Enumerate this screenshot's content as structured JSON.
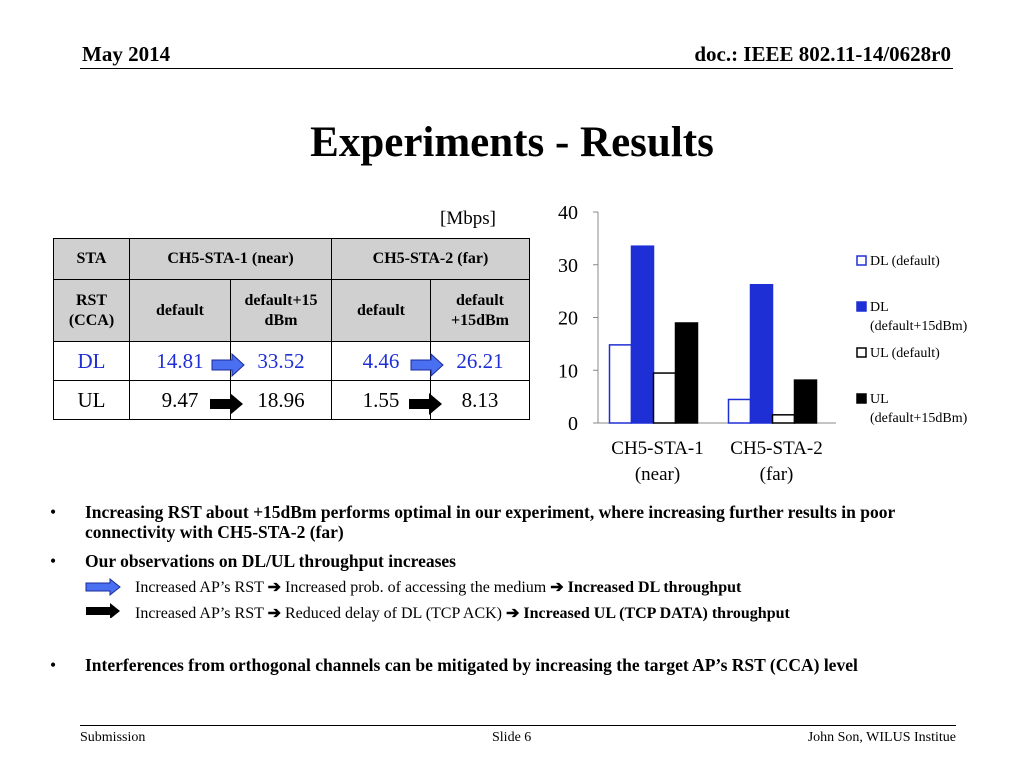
{
  "header": {
    "date": "May 2014",
    "doc": "doc.: IEEE 802.11-14/0628r0"
  },
  "title": "Experiments - Results",
  "unit": "[Mbps]",
  "table": {
    "headers": [
      "STA",
      "CH5-STA-1 (near)",
      "CH5-STA-2 (far)"
    ],
    "subheader_label": [
      "RST",
      "(CCA)"
    ],
    "subheaders": [
      "default",
      "default+15 dBm",
      "default",
      "default +15dBm"
    ],
    "sub_default_1": "default",
    "sub_plus_1a": "default+15",
    "sub_plus_1b": "dBm",
    "sub_default_2": "default",
    "sub_plus_2a": "default",
    "sub_plus_2b": "+15dBm",
    "rows": [
      {
        "label": "DL",
        "values": [
          "14.81",
          "33.52",
          "4.46",
          "26.21"
        ]
      },
      {
        "label": "UL",
        "values": [
          "9.47",
          "18.96",
          "1.55",
          "8.13"
        ]
      }
    ]
  },
  "chart_data": {
    "type": "bar",
    "categories": [
      "CH5-STA-1 (near)",
      "CH5-STA-2 (far)"
    ],
    "category_lines": [
      [
        "CH5-STA-1",
        "(near)"
      ],
      [
        "CH5-STA-2",
        "(far)"
      ]
    ],
    "series": [
      {
        "name": "DL (default)",
        "values": [
          14.81,
          4.46
        ],
        "color": "#ffffff",
        "stroke": "#1f2fd6"
      },
      {
        "name": "DL (default+15dBm)",
        "values": [
          33.52,
          26.21
        ],
        "color": "#1f2fd6",
        "stroke": "#1f2fd6"
      },
      {
        "name": "UL (default)",
        "values": [
          9.47,
          1.55
        ],
        "color": "#ffffff",
        "stroke": "#000000"
      },
      {
        "name": "UL (default+15dBm)",
        "values": [
          18.96,
          8.13
        ],
        "color": "#000000",
        "stroke": "#000000"
      }
    ],
    "legend_lines": [
      [
        "DL (default)"
      ],
      [
        "DL",
        "(default+15dBm)"
      ],
      [
        "UL (default)"
      ],
      [
        "UL",
        "(default+15dBm)"
      ]
    ],
    "yticks": [
      0,
      10,
      20,
      30,
      40
    ],
    "ylim": [
      0,
      40
    ],
    "legend_position": "right",
    "grid": false
  },
  "bullets": {
    "b1": "Increasing RST about +15dBm performs optimal in our experiment, where increasing further results in poor connectivity with CH5-STA-2 (far)",
    "b2": "Our observations on DL/UL throughput increases",
    "s1_prefix": "Increased AP’s RST ",
    "s1_mid": " Increased prob. of accessing the medium ",
    "s1_bold": "Increased DL throughput",
    "s2_prefix": "Increased AP’s RST ",
    "s2_mid": " Reduced delay of DL (TCP ACK) ",
    "s2_bold": "Increased UL (TCP DATA) throughput",
    "b3": "Interferences from orthogonal channels can be mitigated by increasing the target AP’s RST (CCA) level",
    "bullet_glyph": "•",
    "arrow_glyph": "➔"
  },
  "colors": {
    "dl_blue": "#1f2fd6",
    "header_gray": "#d0d0d0"
  },
  "footer": {
    "left": "Submission",
    "center": "Slide 6",
    "right": "John Son, WILUS Institue"
  }
}
